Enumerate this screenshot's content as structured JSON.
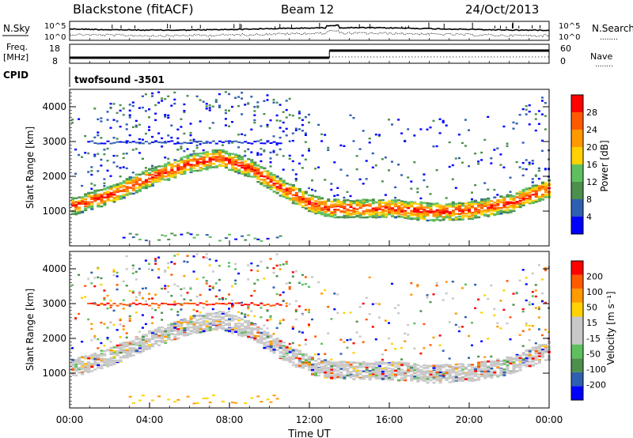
{
  "header": {
    "station": "Blackstone (fitACF)",
    "beam": "Beam 12",
    "date": "24/Oct/2013"
  },
  "labels": {
    "nsky": "N.Sky",
    "nsearch": "N.Search",
    "freq": "Freq.",
    "freq_unit": "[MHz]",
    "nave": "Nave",
    "cpid": "CPID",
    "cpid_value": "twofsound  -3501",
    "legend_dots": "........"
  },
  "noise_ticks": {
    "left_top": "10^5",
    "left_bottom": "10^0",
    "right_top": "10^5",
    "right_bottom": "10^0"
  },
  "freq_ticks": {
    "left_top": "18",
    "left_bottom": "8",
    "right_top": "60",
    "right_bottom": "0"
  },
  "colors": {
    "power": [
      "#0000ff",
      "#2f5fb0",
      "#4d8f4d",
      "#5fbf5f",
      "#ffd200",
      "#ff9900",
      "#ff5a00",
      "#ff0000"
    ],
    "velocity": [
      "#ff0000",
      "#ff5a00",
      "#ff9900",
      "#ffd200",
      "#c8c8c8",
      "#c8c8c8",
      "#5fbf5f",
      "#4d8f4d",
      "#2f5fb0",
      "#0000ff"
    ]
  },
  "chart_data": [
    {
      "type": "heatmap",
      "title": "Power",
      "ylabel": "Slant Range [km]",
      "ylim": [
        0,
        4500
      ],
      "y_ticks": [
        "1000",
        "2000",
        "3000",
        "4000"
      ],
      "x_ticks": [
        "00:00",
        "04:00",
        "08:00",
        "12:00",
        "16:00",
        "20:00",
        "00:00"
      ],
      "colorbar_label": "Power [dB]",
      "colorbar_ticks": [
        "4",
        "8",
        "12",
        "16",
        "20",
        "24",
        "28"
      ],
      "echo_band_center_km": [
        {
          "t": 0,
          "r": 1150
        },
        {
          "t": 2,
          "r": 1500
        },
        {
          "t": 4,
          "r": 2000
        },
        {
          "t": 6,
          "r": 2400
        },
        {
          "t": 7.5,
          "r": 2550
        },
        {
          "t": 9,
          "r": 2250
        },
        {
          "t": 10.5,
          "r": 1700
        },
        {
          "t": 12,
          "r": 1250
        },
        {
          "t": 13,
          "r": 1100
        },
        {
          "t": 16,
          "r": 1100
        },
        {
          "t": 18,
          "r": 1000
        },
        {
          "t": 20,
          "r": 1050
        },
        {
          "t": 22,
          "r": 1250
        },
        {
          "t": 24,
          "r": 1700
        }
      ]
    },
    {
      "type": "heatmap",
      "title": "Velocity",
      "ylabel": "Slant Range [km]",
      "xlabel": "Time UT",
      "ylim": [
        0,
        4500
      ],
      "y_ticks": [
        "1000",
        "2000",
        "3000",
        "4000"
      ],
      "x_ticks": [
        "00:00",
        "04:00",
        "08:00",
        "12:00",
        "16:00",
        "20:00",
        "00:00"
      ],
      "colorbar_label": "Velocity [m s⁻¹]",
      "colorbar_ticks": [
        "200",
        "100",
        "50",
        "15",
        "-15",
        "-50",
        "-100",
        "-200"
      ]
    }
  ]
}
